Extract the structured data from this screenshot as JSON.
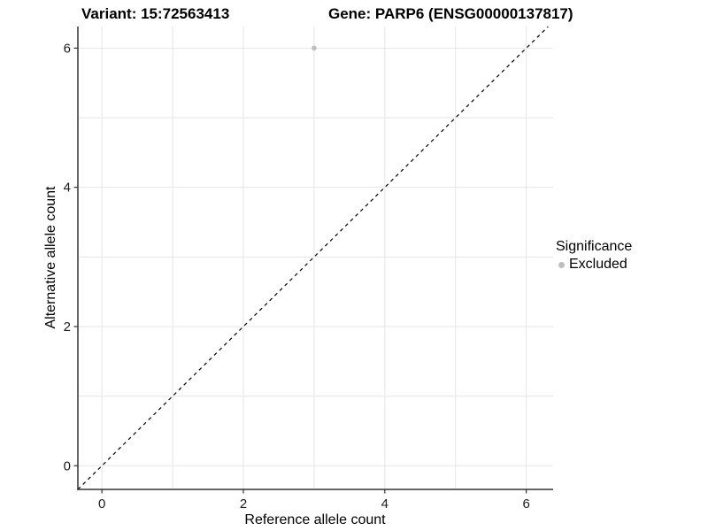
{
  "chart_data": {
    "type": "scatter",
    "title_left": "Variant: 15:72563413",
    "title_right": "Gene: PARP6 (ENSG00000137817)",
    "xlabel": "Reference allele count",
    "ylabel": "Alternative allele count",
    "x_ticks": [
      0,
      2,
      4,
      6
    ],
    "y_ticks": [
      0,
      2,
      4,
      6
    ],
    "grid_positions": [
      0,
      1,
      2,
      3,
      4,
      5,
      6
    ],
    "xlim": [
      -0.34,
      6.38
    ],
    "ylim": [
      -0.34,
      6.31
    ],
    "points": [
      {
        "x": 3,
        "y": 6,
        "significance": "Excluded"
      }
    ],
    "reference_line": {
      "type": "identity",
      "style": "dashed"
    },
    "legend": {
      "title": "Significance",
      "items": [
        {
          "label": "Excluded",
          "color": "#bebebe"
        }
      ]
    },
    "grid": true,
    "legend_position": "right",
    "colors": {
      "point": "#bebebe",
      "grid": "#e6e6e6",
      "axis": "#333333",
      "dashed_line": "#000000"
    }
  }
}
